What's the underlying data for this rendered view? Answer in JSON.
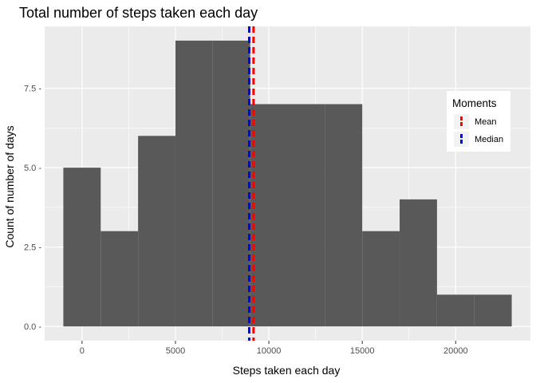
{
  "chart_data": {
    "type": "bar",
    "title": "Total number of steps taken each day",
    "xlabel": "Steps taken each day",
    "ylabel": "Count of number of days",
    "xlim": [
      -2000,
      24000
    ],
    "ylim": [
      -0.45,
      9.45
    ],
    "x_ticks": [
      0,
      5000,
      10000,
      15000,
      20000
    ],
    "x_tick_labels": [
      "0",
      "5000",
      "10000",
      "15000",
      "20000"
    ],
    "y_ticks": [
      0,
      2.5,
      5,
      7.5
    ],
    "y_tick_labels": [
      "0.0 -",
      "2.5 -",
      "5.0 -",
      "7.5 -"
    ],
    "bins": [
      {
        "x0": -1000,
        "x1": 1000,
        "count": 5
      },
      {
        "x0": 1000,
        "x1": 3000,
        "count": 3
      },
      {
        "x0": 3000,
        "x1": 5000,
        "count": 6
      },
      {
        "x0": 5000,
        "x1": 7000,
        "count": 9
      },
      {
        "x0": 7000,
        "x1": 9000,
        "count": 9
      },
      {
        "x0": 9000,
        "x1": 11000,
        "count": 7
      },
      {
        "x0": 11000,
        "x1": 13000,
        "count": 7
      },
      {
        "x0": 13000,
        "x1": 15000,
        "count": 7
      },
      {
        "x0": 15000,
        "x1": 17000,
        "count": 3
      },
      {
        "x0": 17000,
        "x1": 19000,
        "count": 4
      },
      {
        "x0": 19000,
        "x1": 21000,
        "count": 1
      },
      {
        "x0": 21000,
        "x1": 23000,
        "count": 1
      }
    ],
    "reference_lines": [
      {
        "name": "Mean",
        "value": 9180,
        "color": "#ff0000",
        "dash": "dashed"
      },
      {
        "name": "Median",
        "value": 8950,
        "color": "#0000ff",
        "dash": "dashed"
      }
    ],
    "legend": {
      "title": "Moments",
      "placement": "right"
    },
    "grid": true,
    "colors": {
      "bar": "#595959",
      "panel": "#ebebeb",
      "grid": "#ffffff"
    }
  }
}
